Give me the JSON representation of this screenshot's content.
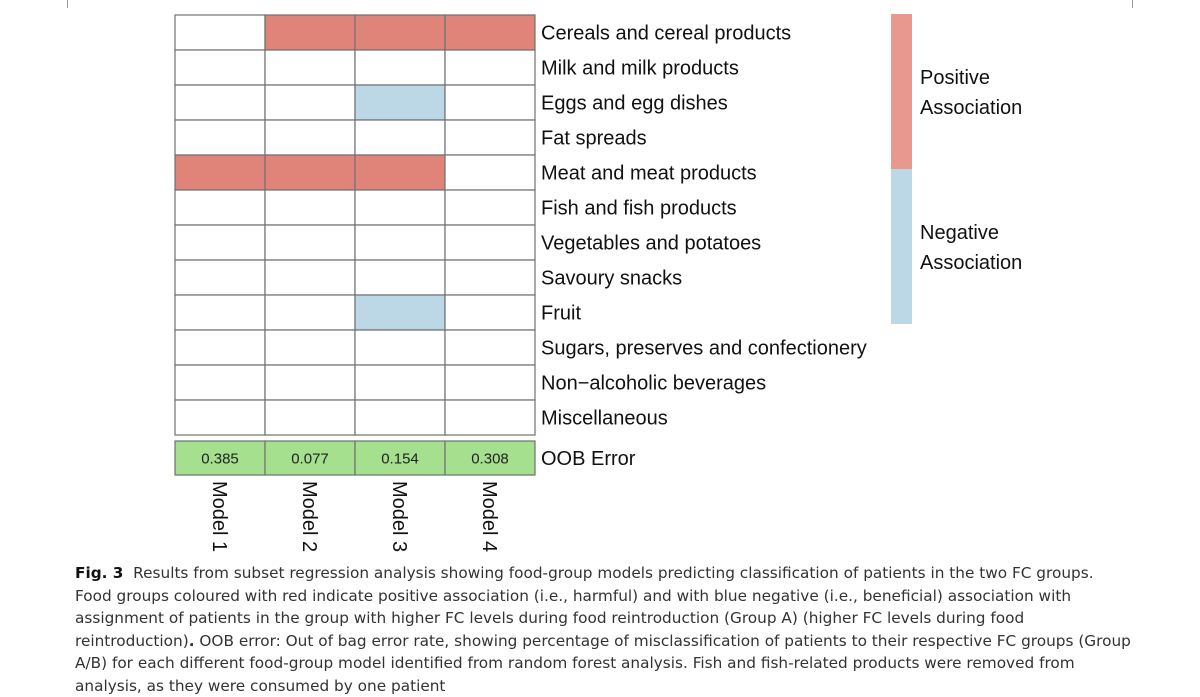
{
  "chart_data": {
    "type": "heatmap",
    "models": [
      "Model 1",
      "Model 2",
      "Model 3",
      "Model 4"
    ],
    "food_groups": [
      "Cereals and cereal products",
      "Milk and milk products",
      "Eggs and egg dishes",
      "Fat spreads",
      "Meat and meat products",
      "Fish and fish products",
      "Vegetables and potatoes",
      "Savoury snacks",
      "Fruit",
      "Sugars, preserves and confectionery",
      "Non−alcoholic beverages",
      "Miscellaneous"
    ],
    "associations": [
      [
        0,
        1,
        1,
        1
      ],
      [
        0,
        0,
        0,
        0
      ],
      [
        0,
        0,
        -1,
        0
      ],
      [
        0,
        0,
        0,
        0
      ],
      [
        1,
        1,
        1,
        0
      ],
      [
        0,
        0,
        0,
        0
      ],
      [
        0,
        0,
        0,
        0
      ],
      [
        0,
        0,
        0,
        0
      ],
      [
        0,
        0,
        -1,
        0
      ],
      [
        0,
        0,
        0,
        0
      ],
      [
        0,
        0,
        0,
        0
      ],
      [
        0,
        0,
        0,
        0
      ]
    ],
    "oob_label": "OOB Error",
    "oob_error": [
      "0.385",
      "0.077",
      "0.154",
      "0.308"
    ],
    "legend": {
      "placement": "right",
      "positive_label": [
        "Positive",
        "Association"
      ],
      "negative_label": [
        "Negative",
        "Association"
      ]
    },
    "colors": {
      "positive": "#e0847a",
      "negative": "#bcd8e6",
      "none": "#ffffff",
      "oob": "#a5e08e",
      "grid": "#707070",
      "legend_positive": "#e8988f",
      "legend_negative": "#bcd8e6"
    }
  },
  "caption": {
    "label": "Fig. 3",
    "text_part1": "Results from subset regression analysis showing food-group models predicting classification of patients in the two FC groups. Food groups coloured with red indicate positive association (i.e., harmful) and with blue negative (i.e., beneficial) association with assignment of patients in the group with higher FC levels during food reintroduction (Group A) (higher FC levels during food reintroduction)",
    "text_dot": ".",
    "text_part2": " OOB error: Out of bag error rate, showing percentage of misclassification of patients to their respective FC groups (Group A/B) for each different food-group model identified from random forest analysis. Fish and fish-related products were removed from analysis, as they were consumed by one patient"
  }
}
